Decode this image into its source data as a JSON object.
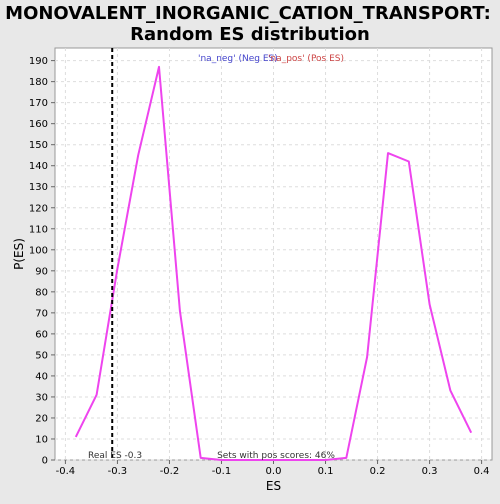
{
  "chart_data": {
    "type": "line",
    "title": "MONOVALENT_INORGANIC_CATION_TRANSPORT:",
    "subtitle": "Random ES distribution",
    "xlabel": "ES",
    "ylabel": "P(ES)",
    "xlim": [
      -0.42,
      0.42
    ],
    "ylim": [
      0,
      196
    ],
    "xticks": [
      -0.4,
      -0.3,
      -0.2,
      -0.1,
      0.0,
      0.1,
      0.2,
      0.3,
      0.4
    ],
    "xtick_labels": [
      "-0.4",
      "-0.3",
      "-0.2",
      "-0.1",
      "0.0",
      "0.1",
      "0.2",
      "0.3",
      "0.4"
    ],
    "yticks": [
      0,
      10,
      20,
      30,
      40,
      50,
      60,
      70,
      80,
      90,
      100,
      110,
      120,
      130,
      140,
      150,
      160,
      170,
      180,
      190
    ],
    "grid": true,
    "series": [
      {
        "color": "#ee44ee",
        "x": [
          -0.38,
          -0.34,
          -0.3,
          -0.26,
          -0.22,
          -0.18,
          -0.14,
          -0.1,
          -0.06,
          -0.02,
          0.02,
          0.06,
          0.1,
          0.14,
          0.18,
          0.22,
          0.26,
          0.3,
          0.34,
          0.38
        ],
        "y": [
          11,
          31,
          91,
          145,
          187,
          71,
          1,
          0,
          0,
          0,
          0,
          0,
          0,
          1,
          49,
          146,
          142,
          74,
          33,
          13
        ]
      }
    ],
    "legend": [
      {
        "text": "'na_neg' (Neg ES)",
        "color": "#4444cc"
      },
      {
        "text": "'na_pos' (Pos ES)",
        "color": "#cc4444"
      }
    ],
    "legend_position": "top-center",
    "reference_line": {
      "x": -0.31,
      "label": "Real ES -0.3",
      "style": "dashed",
      "color": "#000000"
    },
    "annotation": "Sets with pos scores: 46%"
  }
}
